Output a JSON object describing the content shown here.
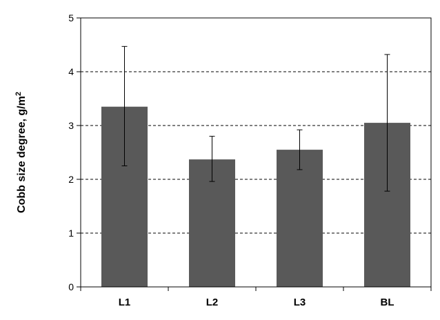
{
  "chart_data": {
    "type": "bar",
    "title": "",
    "xlabel": "",
    "ylabel": "Cobb size degree, g/m",
    "ylabel_superscript": "2",
    "categories": [
      "L1",
      "L2",
      "L3",
      "BL"
    ],
    "series": [
      {
        "values": [
          3.35,
          2.37,
          2.55,
          3.05
        ],
        "error_low": [
          2.25,
          1.96,
          2.18,
          1.78
        ],
        "error_high": [
          4.47,
          2.8,
          2.92,
          4.32
        ]
      }
    ],
    "ylim": [
      0,
      5
    ],
    "yticks": [
      0,
      1,
      2,
      3,
      4,
      5
    ],
    "ytick_labels": [
      "0",
      "1",
      "2",
      "3",
      "4",
      "5"
    ],
    "grid": "horizontal dashed",
    "bar_color": "#595959",
    "legend": "none"
  }
}
